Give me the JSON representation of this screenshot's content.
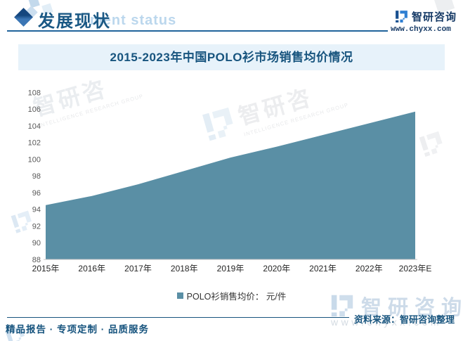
{
  "header": {
    "title": "发展现状",
    "watermark_suffix": "ment status"
  },
  "brand": {
    "name": "智研咨询",
    "url": "www.chyxx.com"
  },
  "chart_data": {
    "type": "area",
    "title": "2015-2023年中国POLO衫市场销售均价情况",
    "categories": [
      "2015年",
      "2016年",
      "2017年",
      "2018年",
      "2019年",
      "2020年",
      "2021年",
      "2022年",
      "2023年E"
    ],
    "series": [
      {
        "name": "POLO衫销售均价： 元/件",
        "values": [
          94.5,
          95.6,
          97.0,
          98.6,
          100.2,
          101.5,
          102.9,
          104.3,
          105.7
        ]
      }
    ],
    "xlabel": "",
    "ylabel": "",
    "ylim": [
      88,
      108
    ],
    "ytick_step": 2,
    "grid": false,
    "legend_position": "bottom",
    "colors": {
      "area": "#5A8FA5",
      "y_tick_text": "#595959",
      "x_tick_text": "#262626",
      "axis_line": "#C6C6C6"
    }
  },
  "footer": {
    "services": "精品报告 · 专项定制 · 品质服务",
    "source": "资料来源：智研咨询整理"
  },
  "watermarks": {
    "cn_full": "智研咨询",
    "cn_partial": "智研咨",
    "caption": "INTELLIGENCE RESEARCH GROUP",
    "url": "www.chyxx.com"
  },
  "theme": {
    "accent": "#17547E",
    "band": "#E7F2FA",
    "header_blue": "#1A5884",
    "brand_navy": "#163A66"
  }
}
